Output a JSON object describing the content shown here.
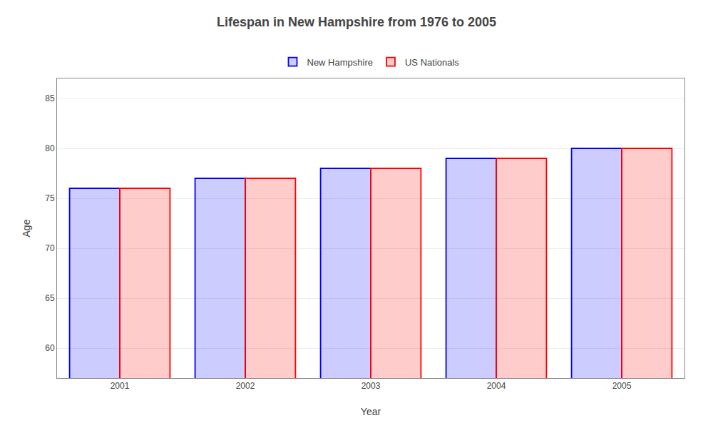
{
  "chart_data": {
    "type": "bar",
    "title": "Lifespan in New Hampshire from 1976 to 2005",
    "xlabel": "Year",
    "ylabel": "Age",
    "categories": [
      "2001",
      "2002",
      "2003",
      "2004",
      "2005"
    ],
    "series": [
      {
        "name": "New Hampshire",
        "color": "#0000ff",
        "values": [
          76,
          77,
          78,
          79,
          80
        ]
      },
      {
        "name": "US Nationals",
        "color": "#ff0000",
        "values": [
          76,
          77,
          78,
          79,
          80
        ]
      }
    ],
    "ylim": [
      57,
      87
    ],
    "yticks": [
      60,
      65,
      70,
      75,
      80,
      85
    ],
    "grid": true,
    "legend": "top"
  }
}
